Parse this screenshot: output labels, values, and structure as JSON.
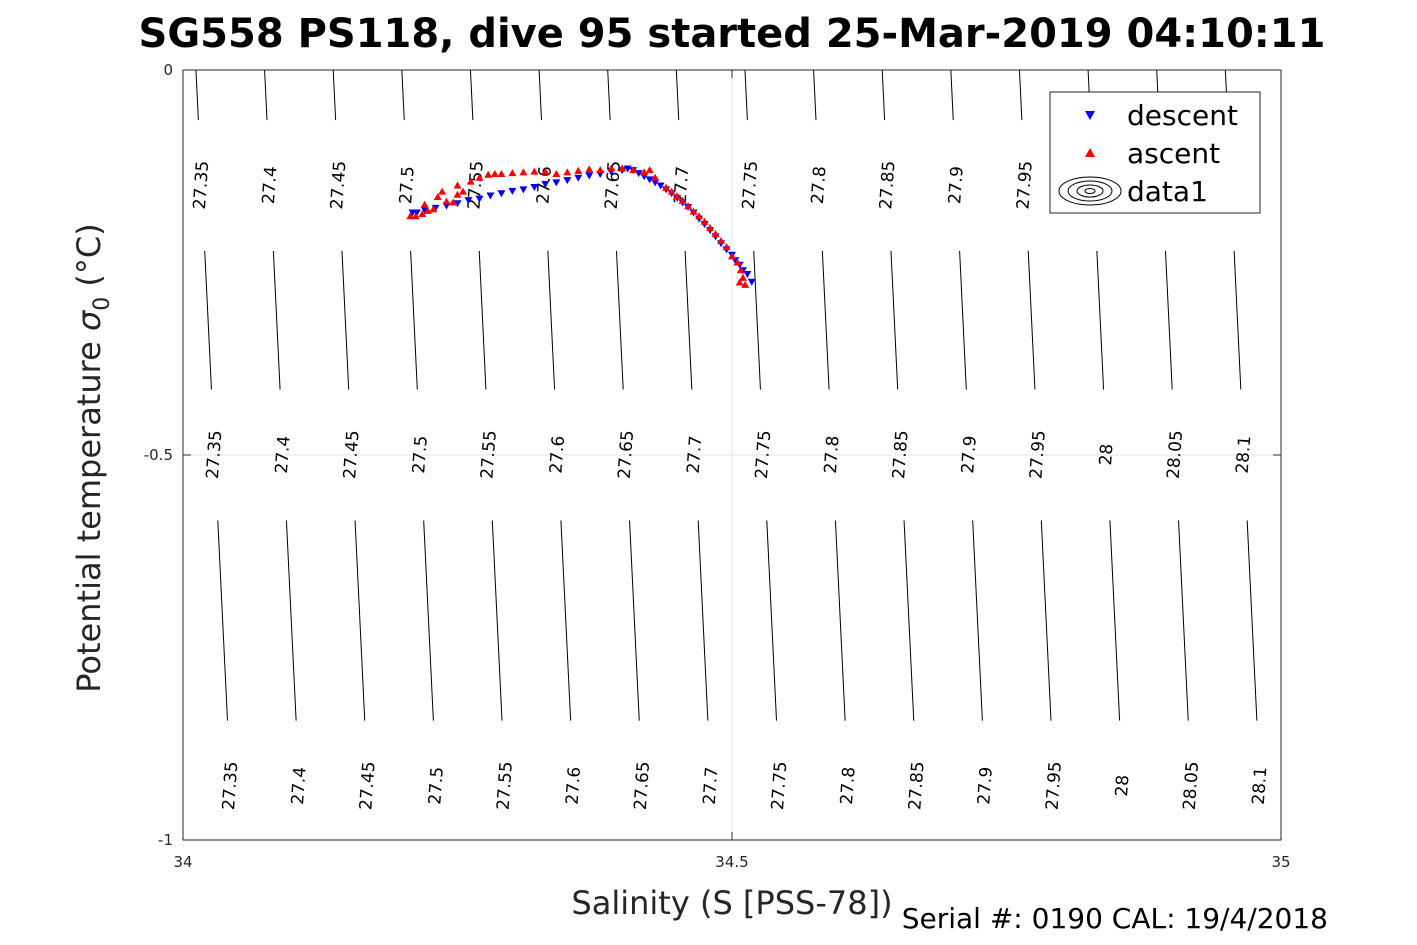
{
  "chart_data": {
    "type": "scatter",
    "title": "SG558 PS118, dive 95 started 25-Mar-2019 04:10:11",
    "xlabel": "Salinity (S [PSS-78])",
    "ylabel_main": "Potential temperature ",
    "ylabel_symbol": "σ",
    "ylabel_sub": "0",
    "ylabel_unit": " (°C)",
    "xlim": [
      34,
      35
    ],
    "ylim": [
      -1,
      0
    ],
    "xticks": [
      34,
      34.5,
      35
    ],
    "xtick_labels": [
      "34",
      "34.5",
      "35"
    ],
    "yticks": [
      0,
      -0.5,
      -1
    ],
    "ytick_labels": [
      "0",
      "-0.5",
      "-1"
    ],
    "grid": true,
    "legend_position": "top-right",
    "contour_levels": [
      27.35,
      27.4,
      27.45,
      27.5,
      27.55,
      27.6,
      27.65,
      27.7,
      27.75,
      27.8,
      27.85,
      27.9,
      27.95,
      28.0,
      28.05,
      28.1
    ],
    "contour_level_labels": [
      "27.35",
      "27.4",
      "27.45",
      "27.5",
      "27.55",
      "27.6",
      "27.65",
      "27.7",
      "27.75",
      "27.8",
      "27.85",
      "27.9",
      "27.95",
      "28",
      "28.05",
      "28.1"
    ],
    "series": [
      {
        "name": "descent",
        "marker": "triangle-down",
        "color": "#0000ff",
        "points": [
          [
            34.209,
            -0.185
          ],
          [
            34.213,
            -0.185
          ],
          [
            34.22,
            -0.181
          ],
          [
            34.23,
            -0.179
          ],
          [
            34.24,
            -0.176
          ],
          [
            34.25,
            -0.173
          ],
          [
            34.26,
            -0.169
          ],
          [
            34.27,
            -0.167
          ],
          [
            34.28,
            -0.163
          ],
          [
            34.29,
            -0.16
          ],
          [
            34.3,
            -0.157
          ],
          [
            34.31,
            -0.155
          ],
          [
            34.32,
            -0.152
          ],
          [
            34.33,
            -0.148
          ],
          [
            34.34,
            -0.146
          ],
          [
            34.35,
            -0.143
          ],
          [
            34.36,
            -0.14
          ],
          [
            34.37,
            -0.137
          ],
          [
            34.38,
            -0.135
          ],
          [
            34.39,
            -0.132
          ],
          [
            34.4,
            -0.13
          ],
          [
            34.405,
            -0.128
          ],
          [
            34.41,
            -0.13
          ],
          [
            34.415,
            -0.134
          ],
          [
            34.42,
            -0.138
          ],
          [
            34.425,
            -0.142
          ],
          [
            34.43,
            -0.146
          ],
          [
            34.435,
            -0.15
          ],
          [
            34.44,
            -0.155
          ],
          [
            34.445,
            -0.16
          ],
          [
            34.45,
            -0.166
          ],
          [
            34.455,
            -0.172
          ],
          [
            34.46,
            -0.178
          ],
          [
            34.465,
            -0.185
          ],
          [
            34.47,
            -0.193
          ],
          [
            34.475,
            -0.2
          ],
          [
            34.48,
            -0.208
          ],
          [
            34.485,
            -0.216
          ],
          [
            34.49,
            -0.225
          ],
          [
            34.495,
            -0.233
          ],
          [
            34.5,
            -0.24
          ],
          [
            34.503,
            -0.247
          ],
          [
            34.507,
            -0.253
          ],
          [
            34.51,
            -0.26
          ],
          [
            34.514,
            -0.265
          ],
          [
            34.518,
            -0.275
          ]
        ]
      },
      {
        "name": "ascent",
        "marker": "triangle-up",
        "color": "#ff0000",
        "points": [
          [
            34.207,
            -0.19
          ],
          [
            34.212,
            -0.19
          ],
          [
            34.218,
            -0.187
          ],
          [
            34.223,
            -0.183
          ],
          [
            34.228,
            -0.181
          ],
          [
            34.22,
            -0.175
          ],
          [
            34.232,
            -0.165
          ],
          [
            34.236,
            -0.158
          ],
          [
            34.24,
            -0.171
          ],
          [
            34.246,
            -0.172
          ],
          [
            34.25,
            -0.162
          ],
          [
            34.255,
            -0.158
          ],
          [
            34.25,
            -0.15
          ],
          [
            34.262,
            -0.145
          ],
          [
            34.27,
            -0.14
          ],
          [
            34.278,
            -0.136
          ],
          [
            34.284,
            -0.135
          ],
          [
            34.29,
            -0.135
          ],
          [
            34.3,
            -0.134
          ],
          [
            34.31,
            -0.133
          ],
          [
            34.32,
            -0.132
          ],
          [
            34.33,
            -0.132
          ],
          [
            34.34,
            -0.135
          ],
          [
            34.35,
            -0.133
          ],
          [
            34.36,
            -0.131
          ],
          [
            34.37,
            -0.129
          ],
          [
            34.38,
            -0.13
          ],
          [
            34.39,
            -0.128
          ],
          [
            34.4,
            -0.128
          ],
          [
            34.41,
            -0.13
          ],
          [
            34.42,
            -0.133
          ],
          [
            34.425,
            -0.13
          ],
          [
            34.43,
            -0.14
          ],
          [
            34.44,
            -0.153
          ],
          [
            34.445,
            -0.158
          ],
          [
            34.45,
            -0.164
          ],
          [
            34.455,
            -0.17
          ],
          [
            34.46,
            -0.177
          ],
          [
            34.465,
            -0.184
          ],
          [
            34.47,
            -0.19
          ],
          [
            34.475,
            -0.197
          ],
          [
            34.48,
            -0.205
          ],
          [
            34.485,
            -0.213
          ],
          [
            34.49,
            -0.222
          ],
          [
            34.495,
            -0.23
          ],
          [
            34.5,
            -0.242
          ],
          [
            34.505,
            -0.25
          ],
          [
            34.508,
            -0.26
          ],
          [
            34.51,
            -0.27
          ],
          [
            34.507,
            -0.276
          ],
          [
            34.512,
            -0.279
          ]
        ]
      },
      {
        "name": "data1",
        "marker": "contour",
        "color": "#000000",
        "points": []
      }
    ]
  },
  "footer": {
    "serial": "Serial #: 0190  CAL: 19/4/2018"
  }
}
